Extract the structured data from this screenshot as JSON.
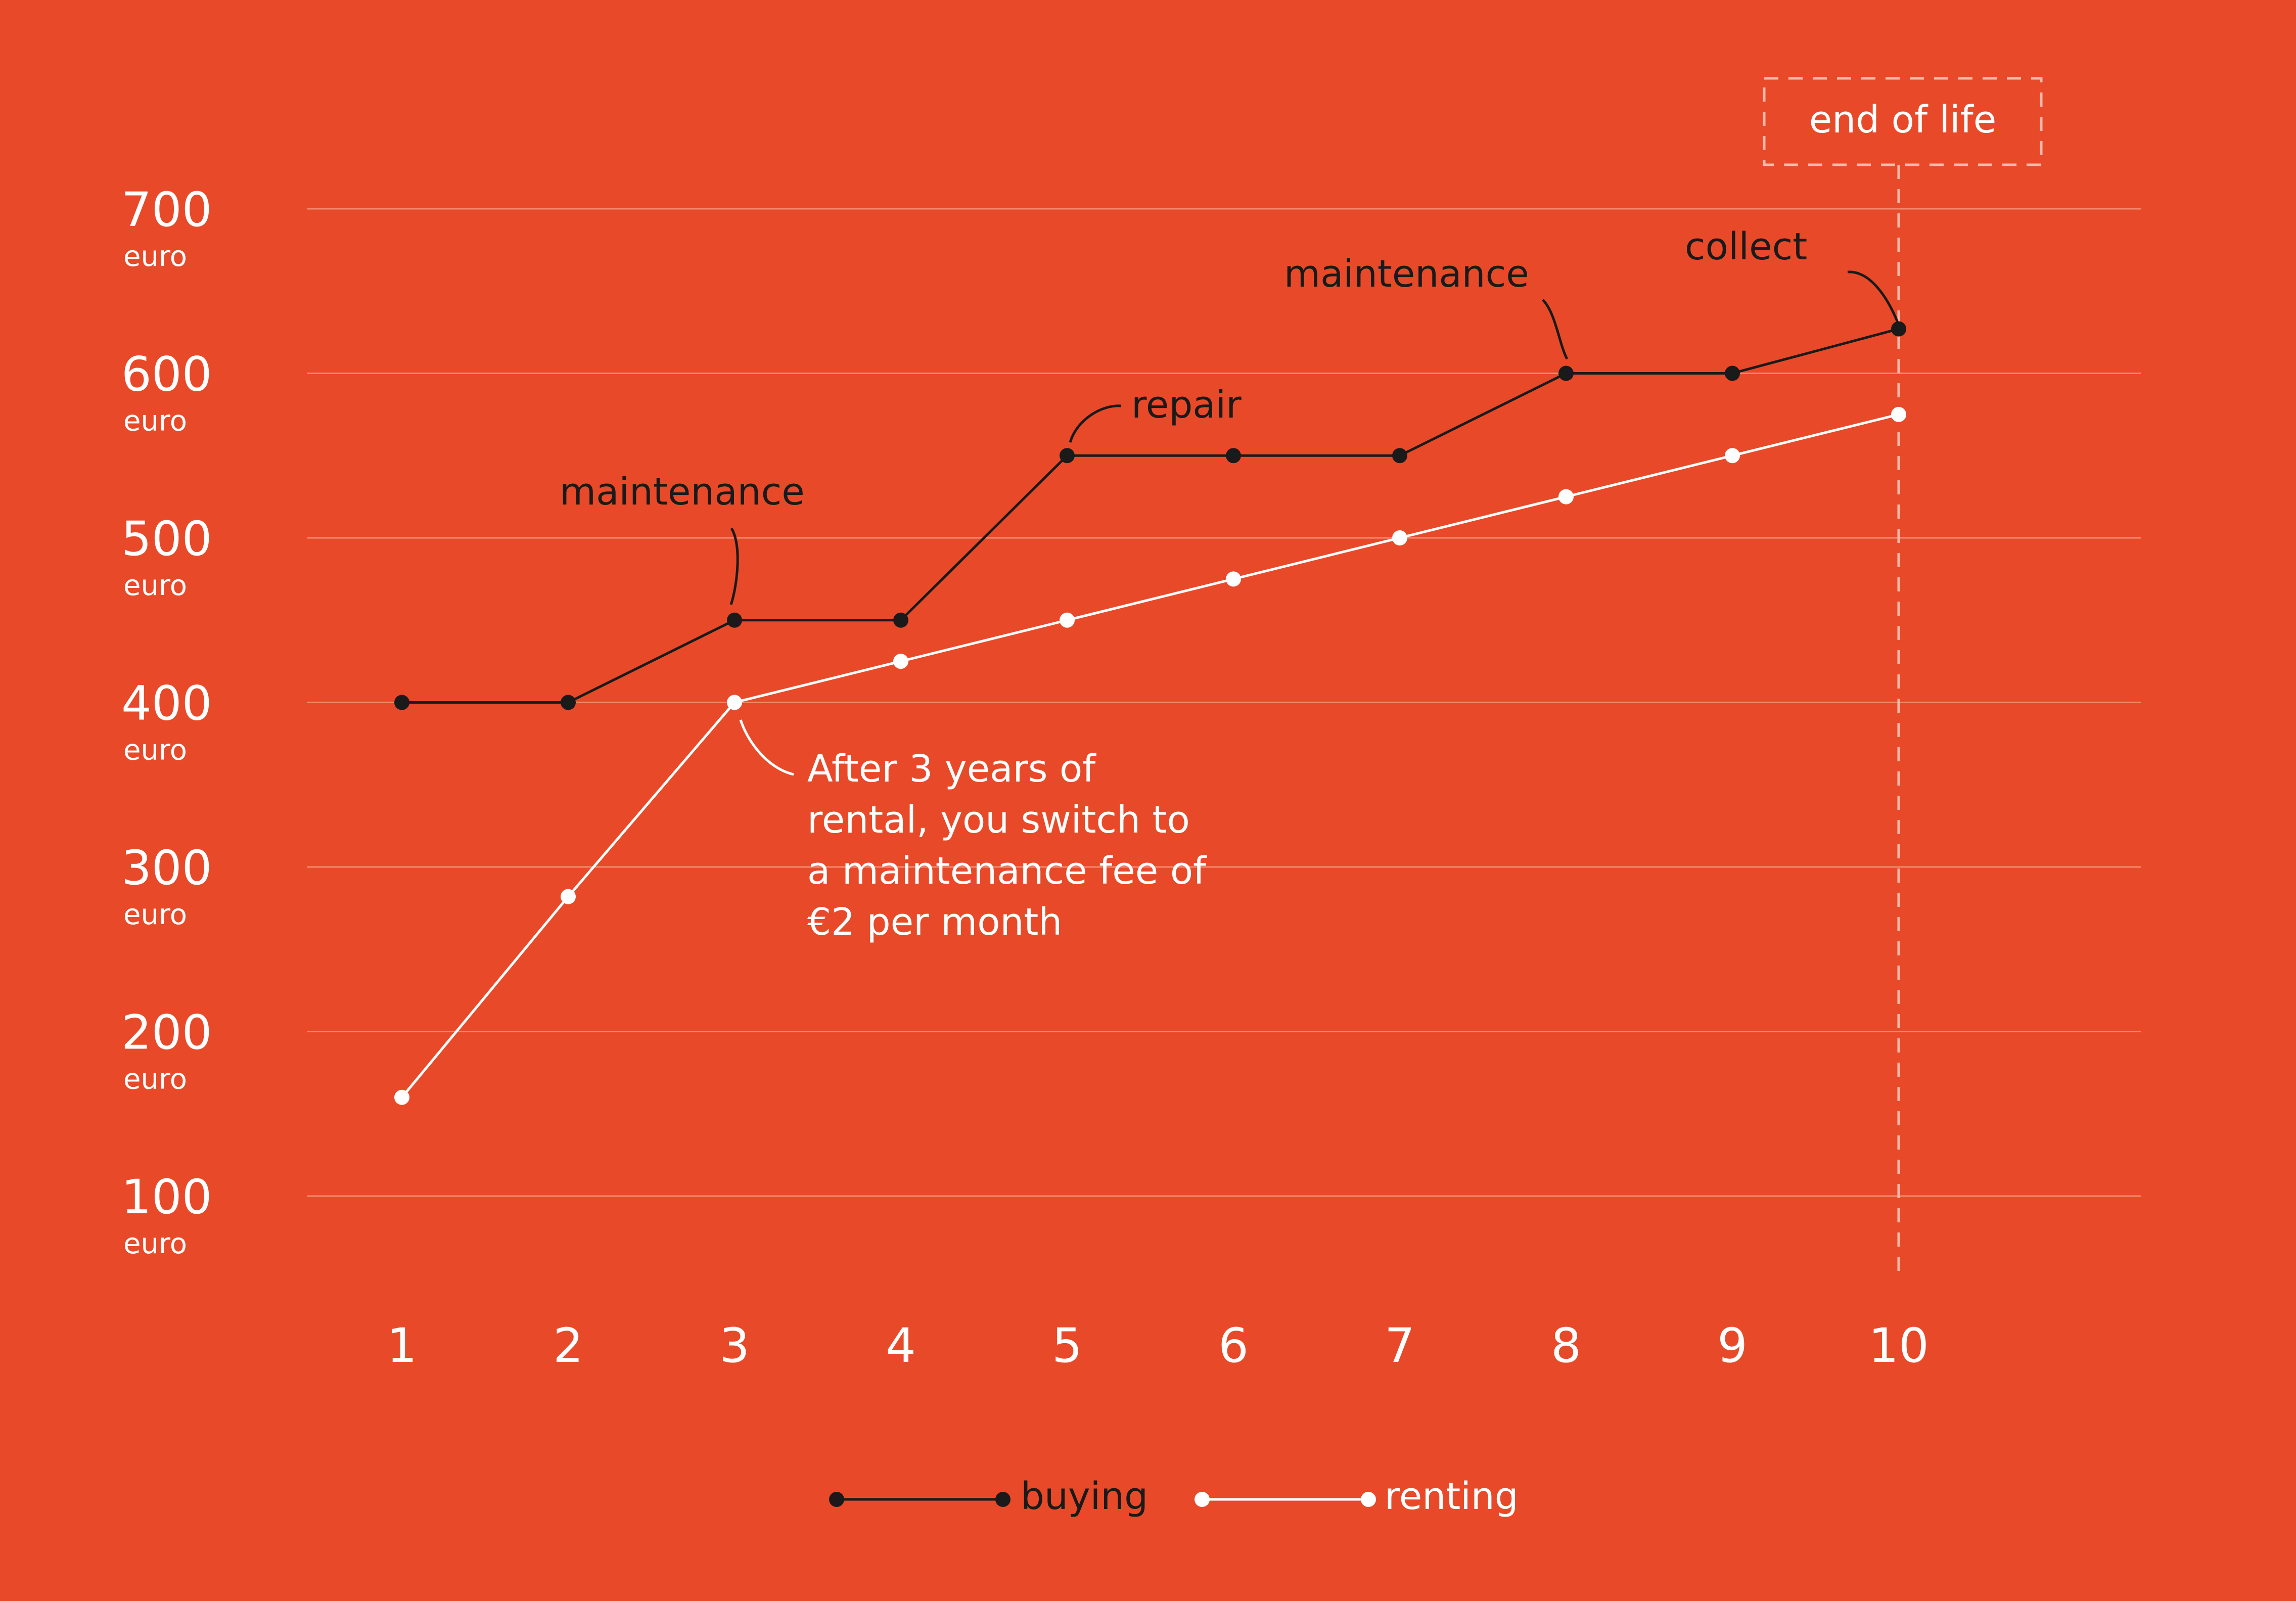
{
  "chart_data": {
    "type": "line",
    "title": "",
    "xlabel": "",
    "ylabel": "",
    "x": [
      1,
      2,
      3,
      4,
      5,
      6,
      7,
      8,
      9,
      10
    ],
    "ylim": [
      100,
      700
    ],
    "y_ticks": [
      {
        "value": "700",
        "unit": "euro"
      },
      {
        "value": "600",
        "unit": "euro"
      },
      {
        "value": "500",
        "unit": "euro"
      },
      {
        "value": "400",
        "unit": "euro"
      },
      {
        "value": "300",
        "unit": "euro"
      },
      {
        "value": "200",
        "unit": "euro"
      },
      {
        "value": "100",
        "unit": "euro"
      }
    ],
    "x_tick_labels": [
      "1",
      "2",
      "3",
      "4",
      "5",
      "6",
      "7",
      "8",
      "9",
      "10"
    ],
    "grid": true,
    "legend_position": "bottom-center",
    "series": [
      {
        "name": "buying",
        "color": "#1A1A1A",
        "values": [
          400,
          400,
          450,
          450,
          550,
          550,
          550,
          600,
          600,
          627
        ]
      },
      {
        "name": "renting",
        "color": "#FFFFFF",
        "values": [
          160,
          282,
          400,
          425,
          450,
          475,
          500,
          525,
          550,
          575
        ]
      }
    ],
    "annotations": [
      {
        "text": "maintenance",
        "series": "buying",
        "x": 3
      },
      {
        "text": "repair",
        "series": "buying",
        "x": 5
      },
      {
        "text": "maintenance",
        "series": "buying",
        "x": 8
      },
      {
        "text": "collect",
        "series": "buying",
        "x": 10
      },
      {
        "text": [
          "After 3 years of",
          "rental, you switch to",
          "a maintenance fee of",
          "€2 per month"
        ],
        "series": "renting",
        "x": 3
      }
    ],
    "marker": {
      "text": "end of life",
      "x": 10
    }
  },
  "colors": {
    "background": "#E84A29",
    "grid": "#F2896F",
    "buying": "#1A1A1A",
    "renting": "#FFFFFF"
  }
}
